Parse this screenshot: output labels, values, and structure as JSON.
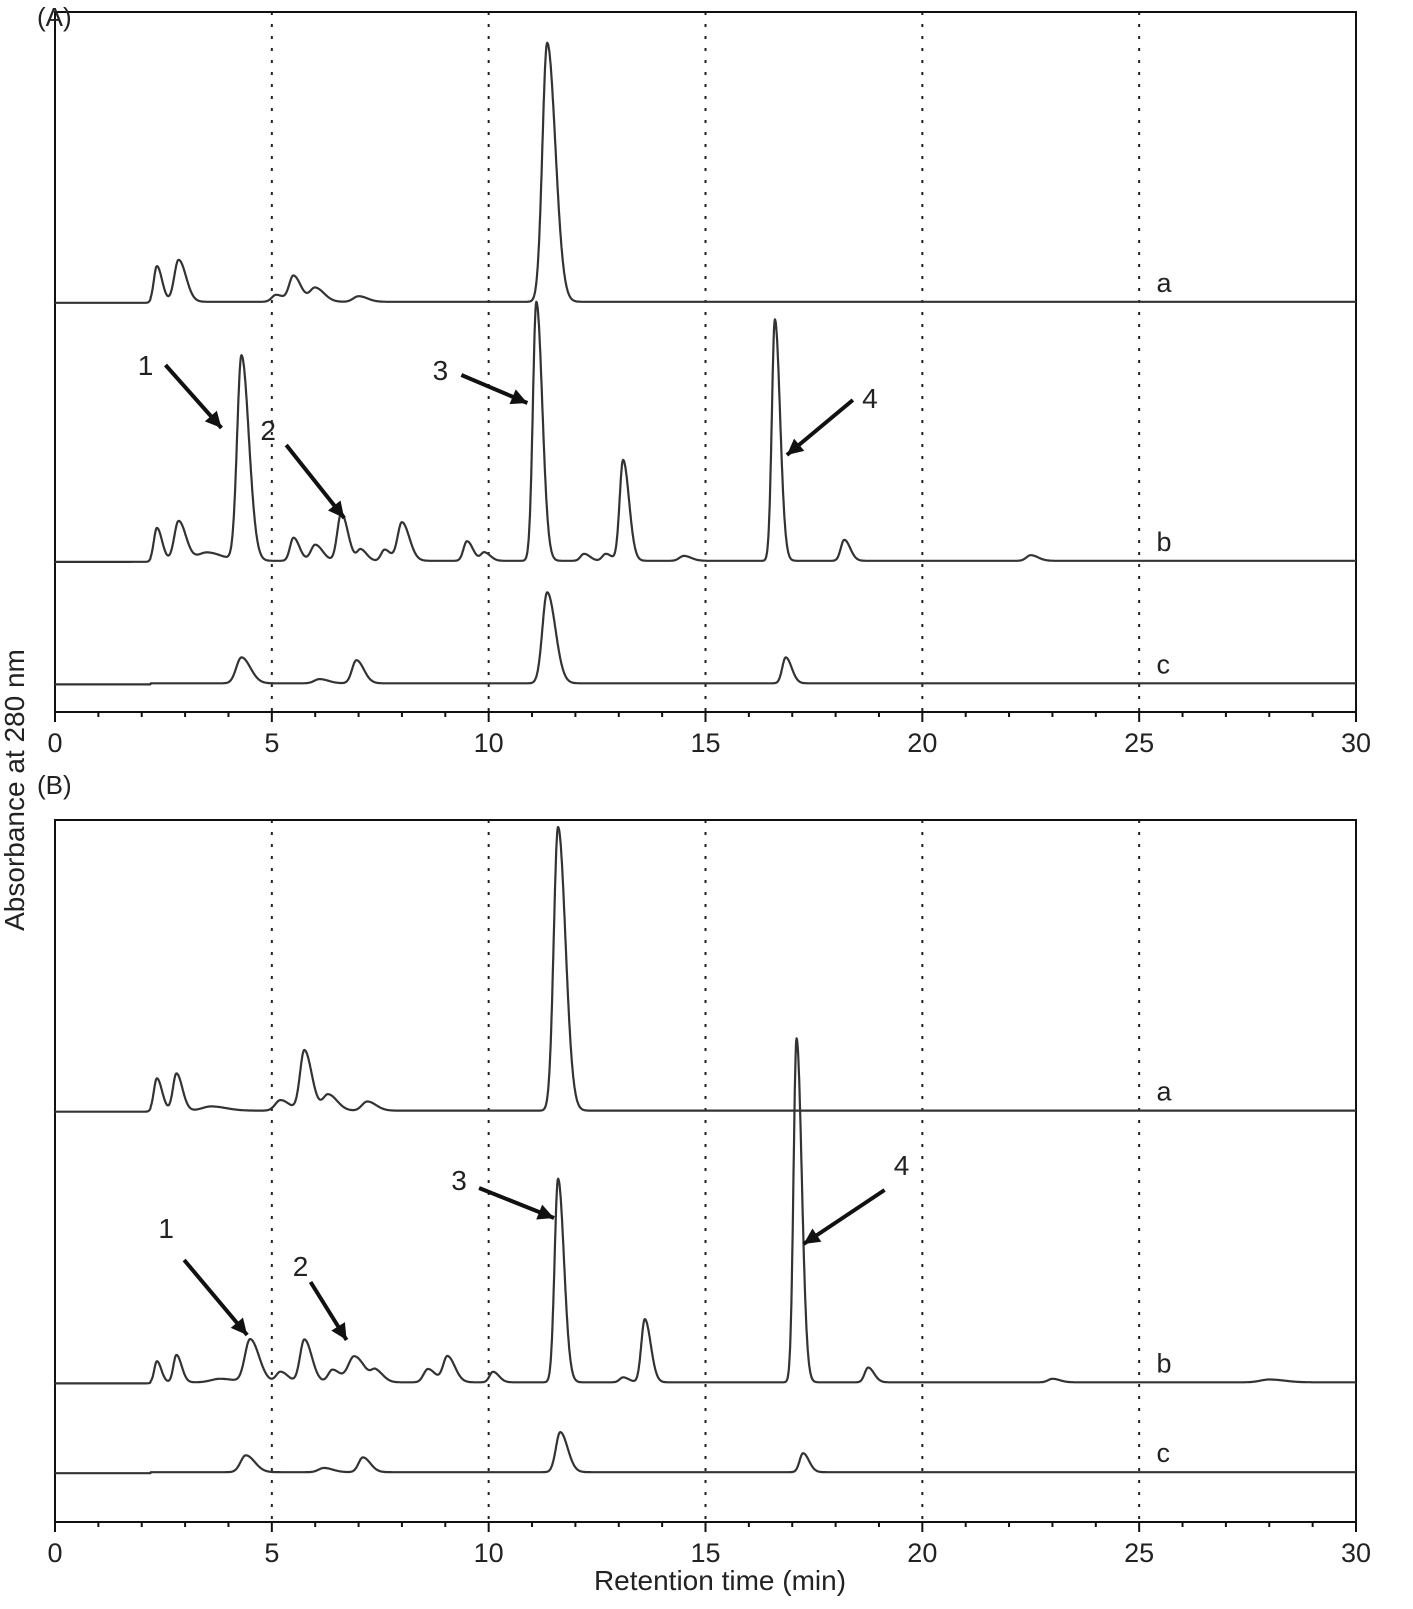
{
  "chart_data": {
    "type": "line",
    "ylabel": "Absorbance at 280 nm",
    "xlabel": "Retention time (min)",
    "xlim": [
      0,
      30
    ],
    "xticks": [
      "0",
      "5",
      "10",
      "15",
      "20",
      "25",
      "30"
    ],
    "grid": "dotted vertical lines at 5, 10, 15, 20, 25 min",
    "y_units": "relative absorbance (arbitrary, 0-100 per panel)",
    "panels": [
      {
        "label": "(A)",
        "ylim": [
          0,
          100
        ],
        "series": [
          {
            "name": "a",
            "baseline": 58.6,
            "peaks": [
              [
                2.35,
                5.1,
                0.07
              ],
              [
                2.85,
                6.0,
                0.1
              ],
              [
                5.1,
                1.0,
                0.1
              ],
              [
                5.5,
                3.7,
                0.1
              ],
              [
                6.0,
                2.0,
                0.12
              ],
              [
                7.0,
                0.8,
                0.12
              ],
              [
                11.35,
                37,
                0.11
              ]
            ]
          },
          {
            "name": "b",
            "baseline": 21.6,
            "peaks": [
              [
                2.35,
                4.7,
                0.07
              ],
              [
                2.85,
                5.7,
                0.1
              ],
              [
                3.5,
                1.2,
                0.2
              ],
              [
                4.3,
                29.3,
                0.1
              ],
              [
                5.5,
                3.3,
                0.08
              ],
              [
                6.0,
                2.3,
                0.1
              ],
              [
                6.6,
                6.8,
                0.09
              ],
              [
                7.05,
                1.6,
                0.08
              ],
              [
                7.6,
                1.6,
                0.08
              ],
              [
                8.0,
                5.5,
                0.1
              ],
              [
                9.5,
                2.8,
                0.08
              ],
              [
                9.9,
                1.2,
                0.08
              ],
              [
                11.1,
                37,
                0.08
              ],
              [
                12.2,
                1.0,
                0.08
              ],
              [
                12.7,
                1.0,
                0.08
              ],
              [
                13.1,
                14.4,
                0.08
              ],
              [
                14.5,
                0.7,
                0.1
              ],
              [
                16.6,
                34.5,
                0.07
              ],
              [
                18.2,
                3.0,
                0.08
              ],
              [
                22.5,
                0.8,
                0.1
              ]
            ]
          },
          {
            "name": "c",
            "baseline": 4.1,
            "peaks": [
              [
                4.3,
                3.7,
                0.12
              ],
              [
                6.1,
                0.6,
                0.12
              ],
              [
                6.95,
                3.3,
                0.1
              ],
              [
                11.35,
                13,
                0.11
              ],
              [
                16.85,
                3.7,
                0.08
              ]
            ]
          }
        ],
        "annotations": [
          {
            "label": "1",
            "x": 4.3
          },
          {
            "label": "2",
            "x": 6.6
          },
          {
            "label": "3",
            "x": 11.1
          },
          {
            "label": "4",
            "x": 16.6
          }
        ]
      },
      {
        "label": "(B)",
        "ylim": [
          0,
          100
        ],
        "series": [
          {
            "name": "a",
            "baseline": 58.6,
            "peaks": [
              [
                2.35,
                4.6,
                0.07
              ],
              [
                2.8,
                5.3,
                0.08
              ],
              [
                3.6,
                0.6,
                0.2
              ],
              [
                5.2,
                1.5,
                0.12
              ],
              [
                5.75,
                8.6,
                0.1
              ],
              [
                6.3,
                2.3,
                0.12
              ],
              [
                7.2,
                1.3,
                0.12
              ],
              [
                11.6,
                40.4,
                0.1
              ]
            ]
          },
          {
            "name": "b",
            "baseline": 19.9,
            "peaks": [
              [
                2.35,
                3.0,
                0.06
              ],
              [
                2.8,
                3.9,
                0.07
              ],
              [
                3.8,
                0.5,
                0.2
              ],
              [
                4.5,
                6.1,
                0.12
              ],
              [
                5.2,
                1.5,
                0.1
              ],
              [
                5.75,
                6.1,
                0.1
              ],
              [
                6.4,
                1.8,
                0.1
              ],
              [
                6.9,
                3.7,
                0.14
              ],
              [
                7.4,
                1.5,
                0.1
              ],
              [
                8.6,
                1.9,
                0.1
              ],
              [
                9.05,
                3.7,
                0.1
              ],
              [
                10.1,
                1.5,
                0.08
              ],
              [
                11.6,
                29,
                0.08
              ],
              [
                13.1,
                0.7,
                0.08
              ],
              [
                13.6,
                9,
                0.08
              ],
              [
                17.1,
                49,
                0.07
              ],
              [
                18.75,
                2.1,
                0.08
              ],
              [
                23,
                0.5,
                0.1
              ],
              [
                28,
                0.4,
                0.2
              ]
            ]
          },
          {
            "name": "c",
            "baseline": 7.1,
            "peaks": [
              [
                4.4,
                2.4,
                0.12
              ],
              [
                6.2,
                0.6,
                0.12
              ],
              [
                7.1,
                2.1,
                0.1
              ],
              [
                11.65,
                5.7,
                0.1
              ],
              [
                17.25,
                2.7,
                0.08
              ]
            ]
          }
        ],
        "annotations": [
          {
            "label": "1",
            "x": 4.5
          },
          {
            "label": "2",
            "x": 7.0
          },
          {
            "label": "3",
            "x": 11.6
          },
          {
            "label": "4",
            "x": 17.1
          }
        ]
      }
    ]
  }
}
